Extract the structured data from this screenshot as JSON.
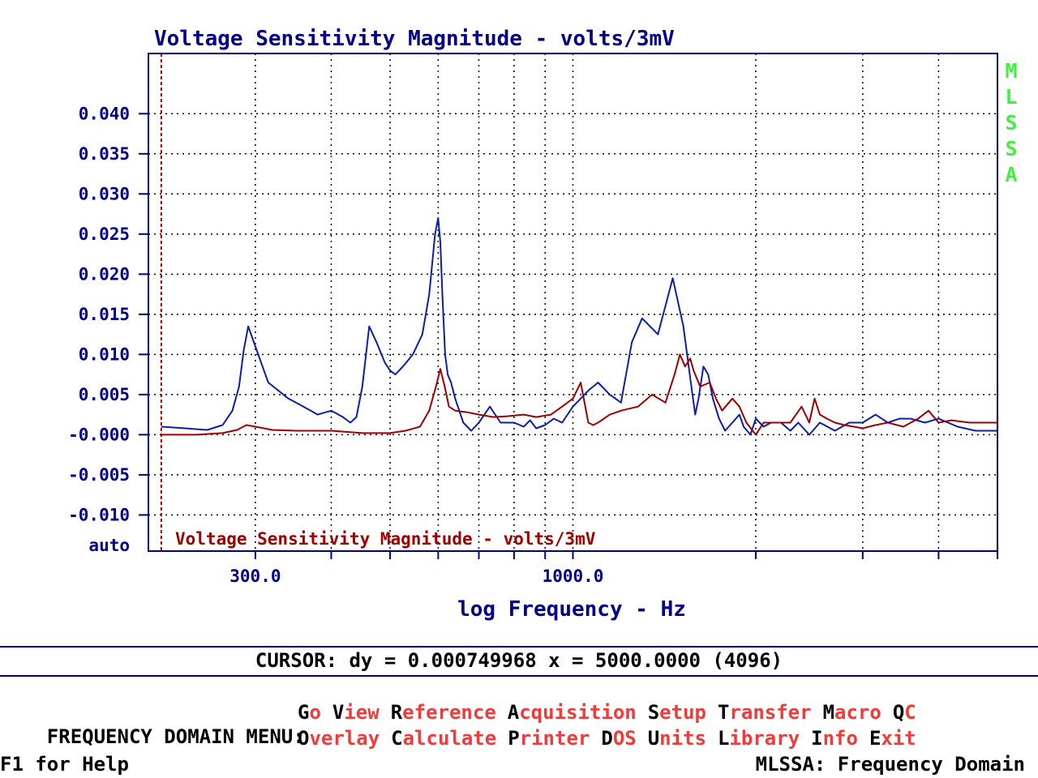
{
  "colors": {
    "axis_blue": "#00008b",
    "trace_blue": "#0b1fa8",
    "trace_red": "#a00000",
    "grid": "#000000",
    "side_label_green": "#3df23d",
    "menu_hot": "#000000",
    "menu_rest": "#ef3b3b"
  },
  "chart_data": {
    "type": "line",
    "title": "Voltage Sensitivity Magnitude - volts/3mV",
    "overlay_title": "Voltage Sensitivity Magnitude - volts/3mV",
    "xlabel": "log Frequency - Hz",
    "x_scale": "log",
    "xlim": [
      200,
      5000
    ],
    "x_ticks": [
      300,
      1000
    ],
    "x_tick_labels": [
      "300.0",
      "1000.0"
    ],
    "ylim": [
      -0.0145,
      0.0475
    ],
    "y_ticks": [
      0.04,
      0.035,
      0.03,
      0.025,
      0.02,
      0.015,
      0.01,
      0.005,
      0.0,
      -0.005,
      -0.01
    ],
    "y_tick_labels": [
      "0.040",
      "0.035",
      "0.030",
      "0.025",
      "0.020",
      "0.015",
      "0.010",
      "0.005",
      "-0.000",
      "-0.005",
      "-0.010"
    ],
    "y_auto_label": "auto",
    "side_label": "MLSSA",
    "grid": true,
    "cursors_x": [
      210,
      5000
    ],
    "series": [
      {
        "color": "#0b1fa8",
        "x": [
          210,
          230,
          250,
          265,
          275,
          282,
          287,
          292,
          300,
          315,
          340,
          360,
          380,
          400,
          418,
          430,
          440,
          450,
          462,
          475,
          490,
          500,
          510,
          525,
          545,
          565,
          580,
          593,
          600,
          605,
          610,
          616,
          622,
          630,
          640,
          660,
          680,
          700,
          730,
          760,
          800,
          830,
          850,
          870,
          900,
          930,
          960,
          1000,
          1030,
          1060,
          1100,
          1150,
          1200,
          1250,
          1300,
          1380,
          1460,
          1520,
          1570,
          1590,
          1610,
          1640,
          1670,
          1700,
          1740,
          1780,
          1830,
          1880,
          1910,
          1960,
          2000,
          2060,
          2120,
          2200,
          2280,
          2350,
          2450,
          2550,
          2700,
          2850,
          3000,
          3150,
          3300,
          3450,
          3600,
          3800,
          4000,
          4300,
          4600,
          5000
        ],
        "y": [
          0.001,
          0.0008,
          0.0006,
          0.0012,
          0.003,
          0.006,
          0.0105,
          0.0135,
          0.011,
          0.0065,
          0.0045,
          0.0035,
          0.0025,
          0.003,
          0.0022,
          0.0015,
          0.0022,
          0.006,
          0.0135,
          0.0115,
          0.009,
          0.008,
          0.0075,
          0.0085,
          0.01,
          0.0125,
          0.0175,
          0.025,
          0.027,
          0.024,
          0.017,
          0.01,
          0.0075,
          0.0065,
          0.0045,
          0.0015,
          0.0005,
          0.0015,
          0.0035,
          0.0015,
          0.0015,
          0.001,
          0.0018,
          0.0008,
          0.0012,
          0.002,
          0.0015,
          0.0035,
          0.0045,
          0.0055,
          0.0065,
          0.005,
          0.004,
          0.0115,
          0.0145,
          0.0125,
          0.0195,
          0.0135,
          0.0055,
          0.0025,
          0.0045,
          0.0085,
          0.0075,
          0.0045,
          0.002,
          0.0005,
          0.0015,
          0.0025,
          0.001,
          0.0,
          0.002,
          0.001,
          0.0015,
          0.0015,
          0.0005,
          0.0015,
          0.0,
          0.0015,
          0.0005,
          0.0015,
          0.0015,
          0.0025,
          0.0015,
          0.002,
          0.002,
          0.0015,
          0.002,
          0.001,
          0.0005,
          0.0005
        ]
      },
      {
        "color": "#a00000",
        "x": [
          210,
          240,
          265,
          280,
          290,
          300,
          320,
          350,
          400,
          450,
          500,
          530,
          560,
          580,
          595,
          605,
          615,
          625,
          640,
          670,
          700,
          740,
          780,
          830,
          870,
          920,
          960,
          1000,
          1030,
          1045,
          1060,
          1080,
          1100,
          1150,
          1200,
          1280,
          1350,
          1420,
          1470,
          1500,
          1530,
          1560,
          1580,
          1620,
          1680,
          1720,
          1760,
          1830,
          1880,
          1930,
          2000,
          2060,
          2120,
          2200,
          2280,
          2380,
          2450,
          2500,
          2550,
          2620,
          2700,
          2800,
          2900,
          3000,
          3150,
          3300,
          3500,
          3700,
          3850,
          4000,
          4200,
          4500,
          4800,
          5000
        ],
        "y": [
          0.0,
          0.0,
          0.0002,
          0.0006,
          0.0012,
          0.001,
          0.0006,
          0.0005,
          0.0005,
          0.0002,
          0.0002,
          0.0005,
          0.001,
          0.003,
          0.006,
          0.0082,
          0.006,
          0.0035,
          0.003,
          0.0028,
          0.0025,
          0.0022,
          0.0023,
          0.0025,
          0.0022,
          0.0025,
          0.0035,
          0.0045,
          0.0065,
          0.004,
          0.0015,
          0.0012,
          0.0015,
          0.0025,
          0.003,
          0.0035,
          0.005,
          0.004,
          0.0075,
          0.01,
          0.0085,
          0.0095,
          0.008,
          0.006,
          0.0065,
          0.0045,
          0.003,
          0.0045,
          0.0035,
          0.0015,
          0.0,
          0.0015,
          0.0015,
          0.0015,
          0.0015,
          0.0035,
          0.0015,
          0.0045,
          0.0025,
          0.002,
          0.0015,
          0.0012,
          0.001,
          0.0008,
          0.0012,
          0.0015,
          0.001,
          0.002,
          0.003,
          0.0015,
          0.0018,
          0.0015,
          0.0015,
          0.0015
        ]
      }
    ]
  },
  "status": {
    "cursor_readout": "CURSOR: dy = 0.000749968 x = 5000.0000 (4096)",
    "help": "F1 for Help",
    "mode": "MLSSA: Frequency Domain"
  },
  "menu": {
    "title": "FREQUENCY DOMAIN MENU:",
    "row1": [
      {
        "name": "go",
        "hot": "G",
        "rest": "o"
      },
      {
        "name": "view",
        "hot": "V",
        "rest": "iew"
      },
      {
        "name": "reference",
        "hot": "R",
        "rest": "eference"
      },
      {
        "name": "acquisition",
        "hot": "A",
        "rest": "cquisition"
      },
      {
        "name": "setup",
        "hot": "S",
        "rest": "etup"
      },
      {
        "name": "transfer",
        "hot": "T",
        "rest": "ransfer"
      },
      {
        "name": "macro",
        "hot": "M",
        "rest": "acro"
      },
      {
        "name": "qc",
        "hot": "Q",
        "rest": "C"
      }
    ],
    "row2": [
      {
        "name": "overlay",
        "hot": "O",
        "rest": "verlay"
      },
      {
        "name": "calculate",
        "hot": "C",
        "rest": "alculate"
      },
      {
        "name": "printer",
        "hot": "P",
        "rest": "rinter"
      },
      {
        "name": "dos",
        "hot": "D",
        "rest": "OS"
      },
      {
        "name": "units",
        "hot": "U",
        "rest": "nits"
      },
      {
        "name": "library",
        "hot": "L",
        "rest": "ibrary"
      },
      {
        "name": "info",
        "hot": "I",
        "rest": "nfo"
      },
      {
        "name": "exit",
        "hot": "E",
        "rest": "xit"
      }
    ]
  }
}
